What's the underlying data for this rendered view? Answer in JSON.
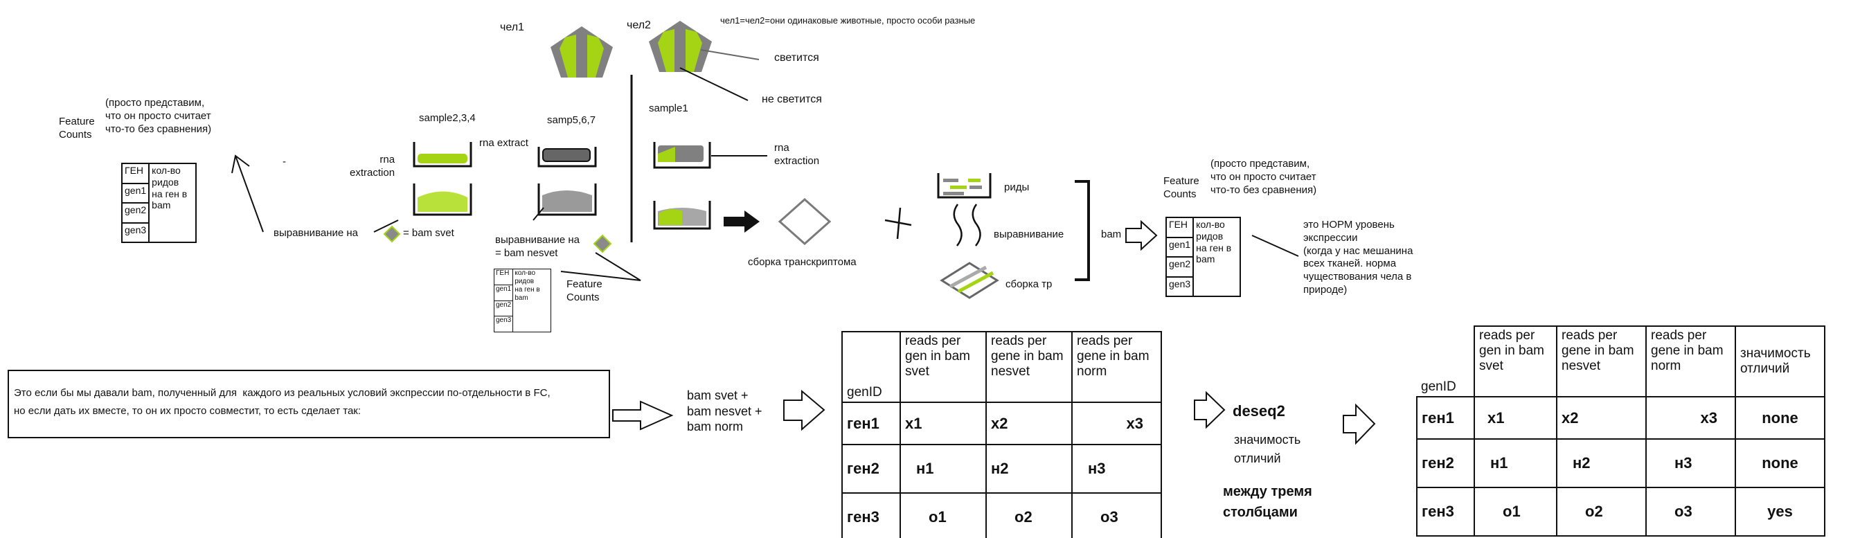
{
  "labels": {
    "chel1": "чел1",
    "chel2": "чел2",
    "chel_note": "чел1=чел2=они одинаковые животные, просто особи разные",
    "glows": "светится",
    "not_glows": "не светится",
    "fc_note_1": "(просто представим,\nчто он просто считает\nчто-то без сравнения)",
    "feature_counts": "Feature\nCounts",
    "sample234": "sample2,3,4",
    "samp567": "samp5,6,7",
    "sample1": "sample1",
    "rna_extraction": "rna\nextraction",
    "rna_extract": "rna extract",
    "rna_extraction_2": "rna\nextraction",
    "align_svet": "выравнивание на",
    "bam_svet": "= bam svet",
    "align_nesvet": "выравнивание на\n= bam nesvet",
    "feature_counts_2": "Feature\nCounts",
    "assembly": "сборка транскриптома",
    "reads": "риды",
    "alignment": "выравнивание",
    "assembly_tr": "сборка тр",
    "bam": "bam",
    "feature_counts_3": "Feature\nCounts",
    "fc_note_2": "(просто представим,\nчто он просто считает\nчто-то без сравнения)",
    "norm_note": "это НОРМ уровень\nэкспрессии\n(когда у нас мешанина\nвсех тканей. норма\nчуществования чела в\nприроде)",
    "box_note": "Это если бы мы давали bam, полученный для  каждого из реальных условий экспрессии по-отдельности в FC,\nно если дать их вместе, то он их просто совместит, то есть сделает так:",
    "bam_combo": "bam svet +\nbam nesvet +\nbam norm",
    "deseq2": "deseq2",
    "significance": "значимость\nотличий",
    "between_columns": "между тремя\nстолбцами",
    "dash": "-"
  },
  "small_table": {
    "head": "ГЕН",
    "rows": [
      "gen1",
      "gen2",
      "gen3"
    ],
    "desc": "кол-во\nридов\nна ген в\nbam"
  },
  "big_table_1": {
    "id_header": "genID",
    "headers": [
      "reads per\ngen in bam\nsvet",
      "reads per\ngene in bam\nnesvet",
      "reads per\ngene in bam\nnorm"
    ],
    "rows": [
      {
        "id": "ген1",
        "cells": [
          "x1",
          "x2",
          "x3"
        ]
      },
      {
        "id": "ген2",
        "cells": [
          "н1",
          "н2",
          "н3"
        ]
      },
      {
        "id": "ген3",
        "cells": [
          "о1",
          "о2",
          "о3"
        ]
      }
    ]
  },
  "big_table_2": {
    "id_header": "genID",
    "headers": [
      "reads per\ngen in bam\nsvet",
      "reads per\ngene in bam\nnesvet",
      "reads per\ngene in bam\nnorm",
      "значимость\nотличий"
    ],
    "rows": [
      {
        "id": "ген1",
        "cells": [
          "x1",
          "x2",
          "x3",
          "none"
        ]
      },
      {
        "id": "ген2",
        "cells": [
          "н1",
          "н2",
          "н3",
          "none"
        ]
      },
      {
        "id": "ген3",
        "cells": [
          "о1",
          "о2",
          "о3",
          "yes"
        ]
      }
    ]
  },
  "colors": {
    "lime": "#a4d414",
    "gray": "#7f7f7f",
    "dark": "#111111"
  }
}
